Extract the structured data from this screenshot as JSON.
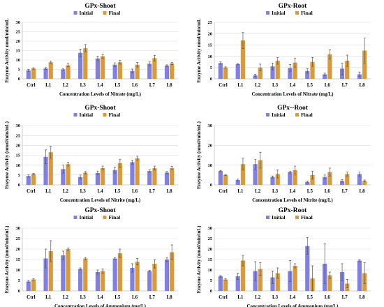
{
  "colors": {
    "initial": "#8080e0",
    "final": "#d89a3a",
    "error_bar": "#555555"
  },
  "chart_data": [
    {
      "id": "gpx-shoot-nitrate",
      "type": "bar",
      "title": "GPx-Shoot",
      "xlabel": "Concentration Levels of Nitrate (mg/L)",
      "ylabel": "Enzyme Activity nmol/min/mL",
      "ylim": [
        0,
        30
      ],
      "yticks": [
        0,
        5,
        10,
        15,
        20,
        25,
        30
      ],
      "grid": true,
      "legend": "top-center",
      "categories": [
        "Ctrl",
        "L1",
        "L2",
        "L3",
        "L4",
        "L5",
        "L6",
        "L7",
        "L8"
      ],
      "series": [
        {
          "name": "Initial",
          "values": [
            4.5,
            5.5,
            5.0,
            13.8,
            10.8,
            7.5,
            4.2,
            8.0,
            7.0
          ],
          "errors": [
            0.5,
            0.5,
            0.4,
            2.0,
            1.2,
            1.0,
            1.0,
            1.0,
            0.4
          ]
        },
        {
          "name": "Final",
          "values": [
            5.5,
            8.8,
            7.2,
            16.2,
            12.0,
            8.8,
            7.5,
            11.0,
            8.2
          ],
          "errors": [
            0.4,
            0.5,
            0.8,
            2.0,
            1.0,
            1.0,
            1.2,
            1.5,
            0.6
          ]
        }
      ]
    },
    {
      "id": "gpx-root-nitrate",
      "type": "bar",
      "title": "GPx-Root",
      "xlabel": "Concentration Levels of Nitrate (mg/L)",
      "ylabel": "Enzyme Activity nmol/min/mL",
      "ylim": [
        0,
        25
      ],
      "yticks": [
        0,
        5,
        10,
        15,
        20,
        25
      ],
      "grid": true,
      "legend": "top-center",
      "categories": [
        "Ctrl",
        "L1",
        "L2",
        "L3",
        "L4",
        "L5",
        "L6",
        "L7",
        "L8"
      ],
      "series": [
        {
          "name": "Initial",
          "values": [
            7.0,
            6.5,
            1.5,
            5.5,
            4.8,
            3.5,
            2.0,
            4.5,
            2.0
          ],
          "errors": [
            0.5,
            0.3,
            0.5,
            1.5,
            1.5,
            1.0,
            0.5,
            2.5,
            1.0
          ]
        },
        {
          "name": "Final",
          "values": [
            5.0,
            17.0,
            5.0,
            8.0,
            7.2,
            7.5,
            10.8,
            8.0,
            12.5
          ],
          "errors": [
            0.3,
            3.5,
            1.5,
            1.5,
            2.0,
            2.0,
            2.0,
            2.5,
            5.5
          ]
        }
      ]
    },
    {
      "id": "gpx-shoot-nitrite",
      "type": "bar",
      "title": "GPx-Shoot",
      "xlabel": "Concentration Levels of Nitrite (mg/L)",
      "ylabel": "Enzyme Activity  (nmol/min/mL)",
      "ylim": [
        0,
        30
      ],
      "yticks": [
        0,
        5,
        10,
        15,
        20,
        25,
        30
      ],
      "grid": true,
      "legend": "top-center",
      "categories": [
        "Ctrl",
        "L1",
        "L2",
        "L3",
        "L4",
        "L5",
        "L6",
        "L7",
        "L8"
      ],
      "series": [
        {
          "name": "Initial",
          "values": [
            4.5,
            14.2,
            8.0,
            4.0,
            6.0,
            7.5,
            11.5,
            7.0,
            6.2
          ],
          "errors": [
            0.6,
            3.5,
            2.0,
            1.0,
            1.0,
            1.5,
            1.0,
            0.6,
            0.6
          ]
        },
        {
          "name": "Final",
          "values": [
            5.5,
            16.5,
            10.5,
            6.2,
            8.5,
            11.0,
            13.5,
            8.5,
            8.5
          ],
          "errors": [
            0.4,
            3.0,
            1.0,
            0.6,
            1.0,
            2.0,
            1.0,
            1.0,
            0.8
          ]
        }
      ]
    },
    {
      "id": "gpx-root-nitrite",
      "type": "bar",
      "title": "GPx--Root",
      "xlabel": "Concentration Levels of Nitrite (mg/L)",
      "ylabel": "Enzyme Activity  (nmol/min/mL)",
      "ylim": [
        0,
        30
      ],
      "yticks": [
        0,
        10,
        20,
        30
      ],
      "grid": true,
      "legend": "top-center",
      "categories": [
        "Ctrl",
        "L1",
        "L2",
        "L3",
        "L4",
        "L5",
        "L6",
        "L7",
        "L8"
      ],
      "series": [
        {
          "name": "Initial",
          "values": [
            7.0,
            2.5,
            10.5,
            4.0,
            6.5,
            1.5,
            4.0,
            2.0,
            5.5
          ],
          "errors": [
            0.3,
            0.5,
            2.5,
            0.5,
            0.5,
            0.5,
            1.0,
            0.6,
            1.0
          ]
        },
        {
          "name": "Final",
          "values": [
            5.0,
            10.5,
            12.5,
            5.5,
            7.5,
            5.0,
            6.5,
            5.5,
            2.0
          ],
          "errors": [
            0.3,
            3.0,
            4.0,
            2.0,
            2.0,
            2.0,
            2.0,
            1.0,
            0.5
          ]
        }
      ]
    },
    {
      "id": "gpx-shoot-ammonium",
      "type": "bar",
      "title": "GPx-Shoot",
      "xlabel": "Concentration Levels of Ammonium (mg/L)",
      "ylabel": "Enzyme Activity  (nmol/min/mL)",
      "ylim": [
        0,
        30
      ],
      "yticks": [
        0,
        5,
        10,
        15,
        20,
        25,
        30
      ],
      "grid": true,
      "legend": "top-center",
      "categories": [
        "Ctrl",
        "L1",
        "L2",
        "L3",
        "L4",
        "L5",
        "L6",
        "L7",
        "L8"
      ],
      "series": [
        {
          "name": "Initial",
          "values": [
            4.5,
            15.5,
            17.0,
            10.5,
            9.0,
            15.5,
            11.0,
            9.5,
            15.0
          ],
          "errors": [
            0.5,
            4.5,
            2.0,
            0.5,
            1.0,
            0.5,
            2.0,
            0.4,
            1.0
          ]
        },
        {
          "name": "Final",
          "values": [
            5.5,
            19.0,
            20.0,
            15.5,
            9.5,
            18.0,
            14.0,
            13.0,
            18.5
          ],
          "errors": [
            0.3,
            5.0,
            0.5,
            0.6,
            1.0,
            2.0,
            1.5,
            2.0,
            3.5
          ]
        }
      ]
    },
    {
      "id": "gpx-root-ammonium",
      "type": "bar",
      "title": "GPx-Root",
      "xlabel": "Concentration Levels of Ammonium (mg/L)",
      "ylabel": "Enzyme Activity  (nmol/min/mL)",
      "ylim": [
        0,
        30
      ],
      "yticks": [
        0,
        5,
        10,
        15,
        20,
        25,
        30
      ],
      "grid": true,
      "legend": "top-center",
      "categories": [
        "Ctrl",
        "L1",
        "L2",
        "L3",
        "L4",
        "L5",
        "L6",
        "L7",
        "L8"
      ],
      "series": [
        {
          "name": "Initial",
          "values": [
            7.0,
            7.0,
            9.5,
            6.5,
            9.5,
            21.5,
            13.0,
            9.0,
            14.5
          ],
          "errors": [
            0.4,
            1.5,
            4.5,
            3.0,
            5.0,
            4.0,
            9.5,
            4.0,
            0.5
          ]
        },
        {
          "name": "Final",
          "values": [
            5.5,
            14.5,
            10.5,
            8.5,
            12.0,
            6.0,
            7.5,
            3.5,
            8.5
          ],
          "errors": [
            0.3,
            2.5,
            3.0,
            2.5,
            1.0,
            6.0,
            1.5,
            2.0,
            5.0
          ]
        }
      ]
    }
  ]
}
